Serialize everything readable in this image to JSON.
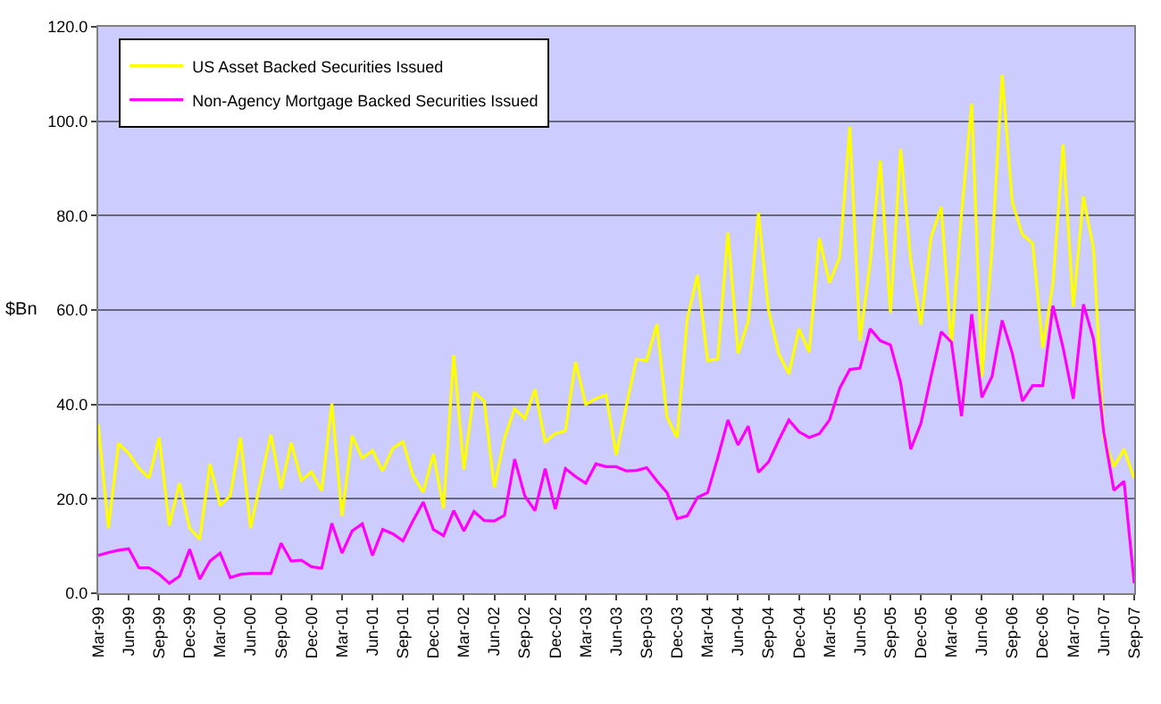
{
  "chart_data": {
    "type": "line",
    "categories": [
      "Mar-99",
      null,
      null,
      "Jun-99",
      null,
      null,
      "Sep-99",
      null,
      null,
      "Dec-99",
      null,
      null,
      "Mar-00",
      null,
      null,
      "Jun-00",
      null,
      null,
      "Sep-00",
      null,
      null,
      "Dec-00",
      null,
      null,
      "Mar-01",
      null,
      null,
      "Jun-01",
      null,
      null,
      "Sep-01",
      null,
      null,
      "Dec-01",
      null,
      null,
      "Mar-02",
      null,
      null,
      "Jun-02",
      null,
      null,
      "Sep-02",
      null,
      null,
      "Dec-02",
      null,
      null,
      "Mar-03",
      null,
      null,
      "Jun-03",
      null,
      null,
      "Sep-03",
      null,
      null,
      "Dec-03",
      null,
      null,
      "Mar-04",
      null,
      null,
      "Jun-04",
      null,
      null,
      "Sep-04",
      null,
      null,
      "Dec-04",
      null,
      null,
      "Mar-05",
      null,
      null,
      "Jun-05",
      null,
      null,
      "Sep-05",
      null,
      null,
      "Dec-05",
      null,
      null,
      "Mar-06",
      null,
      null,
      "Jun-06",
      null,
      null,
      "Sep-06",
      null,
      null,
      "Dec-06",
      null,
      null,
      "Mar-07",
      null,
      null,
      "Jun-07",
      null,
      null,
      "Sep-07"
    ],
    "series": [
      {
        "name": "US Asset Backed Securities Issued",
        "color": "#ffff00",
        "values": [
          35.8,
          13.8,
          31.7,
          29.6,
          26.5,
          24.4,
          33,
          14.3,
          23.3,
          13.8,
          11.4,
          27.4,
          18.6,
          20.7,
          33,
          13.8,
          23.9,
          33.6,
          22.2,
          31.9,
          23.9,
          25.7,
          21.7,
          40.2,
          16.3,
          33.3,
          28.6,
          30.2,
          25.9,
          30.7,
          32.1,
          24.9,
          21.4,
          29.5,
          18.0,
          50.5,
          26.2,
          42.6,
          40.7,
          22.4,
          32.9,
          39.1,
          37.0,
          43.2,
          32.1,
          33.8,
          34.4,
          49.0,
          40.0,
          41.2,
          42.0,
          29.3,
          39.8,
          49.6,
          49.3,
          57.0,
          37.3,
          33.0,
          58.2,
          67.4,
          49.3,
          49.6,
          76.4,
          50.8,
          57.6,
          80.6,
          60,
          50.8,
          46.5,
          56.0,
          51.1,
          75.2,
          65.8,
          71.1,
          98.8,
          53.5,
          70,
          91.6,
          59.4,
          94.1,
          70.5,
          56.9,
          75.4,
          81.8,
          52.6,
          80.3,
          103.7,
          45.9,
          72.9,
          109.8,
          82.8,
          76.0,
          74.1,
          52,
          65.5,
          95.1,
          60.6,
          84.0,
          72.9,
          32.9,
          26.8,
          30.5,
          24.3
        ]
      },
      {
        "name": "Non-Agency Mortgage Backed Securities Issued",
        "color": "#ff00ff",
        "values": [
          8.0,
          8.6,
          9.1,
          9.4,
          5.4,
          5.4,
          4.0,
          2.1,
          3.6,
          9.3,
          3.0,
          6.8,
          8.5,
          3.3,
          4.0,
          4.2,
          4.2,
          4.2,
          10.6,
          6.8,
          7.0,
          5.6,
          5.3,
          14.8,
          8.5,
          13.2,
          14.7,
          8.0,
          13.5,
          12.6,
          11.1,
          15.4,
          19.3,
          13.5,
          12.2,
          17.5,
          13.2,
          17.3,
          15.4,
          15.3,
          16.5,
          28.4,
          20.6,
          17.5,
          26.4,
          17.8,
          26.4,
          24.7,
          23.3,
          27.4,
          26.8,
          26.8,
          25.9,
          26,
          26.6,
          23.8,
          21.3,
          15.8,
          16.4,
          20.3,
          21.3,
          28.7,
          36.7,
          31.4,
          35.4,
          25.6,
          27.8,
          32.4,
          36.7,
          34.2,
          33.0,
          33.8,
          36.7,
          43.4,
          47.4,
          47.7,
          56,
          53.5,
          52.6,
          44.6,
          30.5,
          36.0,
          45.9,
          55.4,
          53.2,
          37.5,
          59.1,
          41.5,
          45.9,
          57.8,
          50.8,
          40.7,
          44.0,
          44.0,
          60.9,
          52,
          41.2,
          61.2,
          53.8,
          34.1,
          21.8,
          23.7,
          2.1
        ]
      }
    ],
    "ylabel": "$Bn",
    "ylim": [
      0,
      120
    ],
    "yticks": [
      {
        "value": 0,
        "label": "0.0"
      },
      {
        "value": 20,
        "label": "20.0"
      },
      {
        "value": 40,
        "label": "40.0"
      },
      {
        "value": 60,
        "label": "60.0"
      },
      {
        "value": 80,
        "label": "80.0"
      },
      {
        "value": 100,
        "label": "100.0"
      },
      {
        "value": 120,
        "label": "120.0"
      }
    ],
    "grid": "y",
    "legend": "top left",
    "marker": "none",
    "line_style": "solid"
  }
}
